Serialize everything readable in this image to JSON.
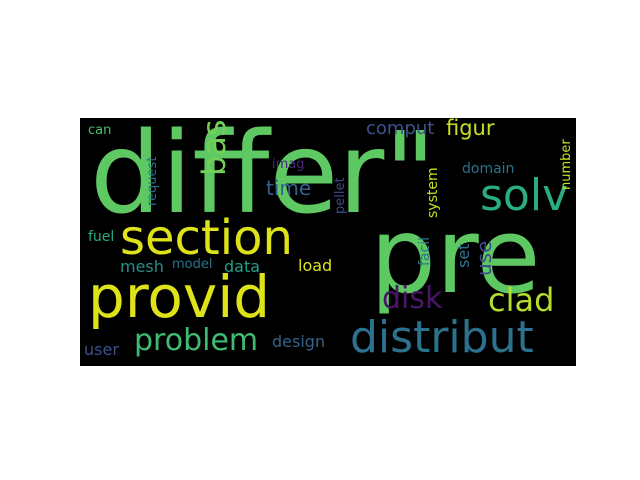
{
  "words": [
    {
      "text": "differ\"",
      "color": "#5ec962",
      "orientation": "horizontal"
    },
    {
      "text": "pre",
      "color": "#5ec962",
      "orientation": "horizontal"
    },
    {
      "text": "provid",
      "color": "#dde318",
      "orientation": "horizontal"
    },
    {
      "text": "section",
      "color": "#dde318",
      "orientation": "horizontal"
    },
    {
      "text": "distribut",
      "color": "#2c728e",
      "orientation": "horizontal"
    },
    {
      "text": "solv",
      "color": "#29af7f",
      "orientation": "horizontal"
    },
    {
      "text": "problem",
      "color": "#3fbc73",
      "orientation": "horizontal"
    },
    {
      "text": "clad",
      "color": "#b5de2b",
      "orientation": "horizontal"
    },
    {
      "text": "disk",
      "color": "#481668",
      "orientation": "horizontal"
    },
    {
      "text": "base",
      "color": "#73d056",
      "orientation": "vertical"
    },
    {
      "text": "comput",
      "color": "#3b528b",
      "orientation": "horizontal"
    },
    {
      "text": "figur",
      "color": "#c8e020",
      "orientation": "horizontal"
    },
    {
      "text": "time",
      "color": "#33638d",
      "orientation": "horizontal"
    },
    {
      "text": "mesh",
      "color": "#21918c",
      "orientation": "horizontal"
    },
    {
      "text": "data",
      "color": "#1fa187",
      "orientation": "horizontal"
    },
    {
      "text": "load",
      "color": "#dde318",
      "orientation": "horizontal"
    },
    {
      "text": "design",
      "color": "#33638d",
      "orientation": "horizontal"
    },
    {
      "text": "user",
      "color": "#3b528b",
      "orientation": "horizontal"
    },
    {
      "text": "use",
      "color": "#3e4989",
      "orientation": "vertical"
    },
    {
      "text": "set",
      "color": "#2c728e",
      "orientation": "vertical"
    },
    {
      "text": "fuel",
      "color": "#25ab82",
      "orientation": "horizontal"
    },
    {
      "text": "model",
      "color": "#2c728e",
      "orientation": "horizontal"
    },
    {
      "text": "can",
      "color": "#4ac16d",
      "orientation": "horizontal"
    },
    {
      "text": "domain",
      "color": "#2c728e",
      "orientation": "horizontal"
    },
    {
      "text": "imag",
      "color": "#482878",
      "orientation": "horizontal"
    },
    {
      "text": "request",
      "color": "#2c728e",
      "orientation": "vertical"
    },
    {
      "text": "pellet",
      "color": "#3e4989",
      "orientation": "vertical"
    },
    {
      "text": "facil",
      "color": "#2a788e",
      "orientation": "vertical"
    },
    {
      "text": "system",
      "color": "#c8e020",
      "orientation": "vertical"
    },
    {
      "text": "number",
      "color": "#c8e020",
      "orientation": "vertical"
    }
  ]
}
